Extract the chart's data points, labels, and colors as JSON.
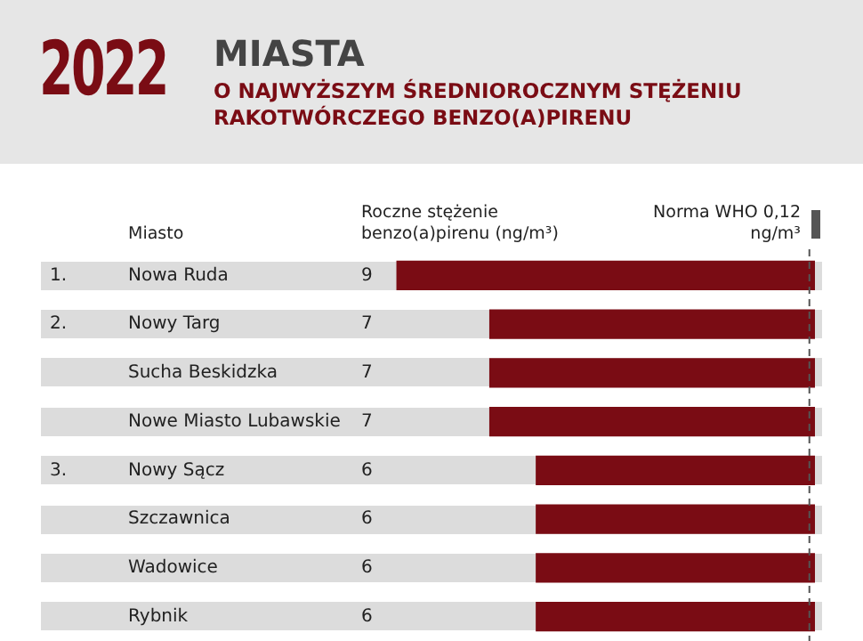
{
  "chart_data": {
    "type": "bar",
    "orientation": "horizontal",
    "title": "2022 MIASTA",
    "subtitle": "O NAJWYŻSZYM ŚREDNIOROCZNYM STĘŻENIU RAKOTWÓRCZEGO BENZO(A)PIRENU",
    "ylabel": "Miasto",
    "xlabel": "Roczne stężenie benzo(a)pirenu (ng/m³)",
    "categories": [
      "Nowa Ruda",
      "Nowy Targ",
      "Sucha Beskidzka",
      "Nowe Miasto Lubawskie",
      "Nowy Sącz",
      "Szczawnica",
      "Wadowice",
      "Rybnik"
    ],
    "values": [
      9,
      7,
      7,
      7,
      6,
      6,
      6,
      6
    ],
    "color": "#7a0c14",
    "data_labels": true,
    "tick_labels": false,
    "legend": "top right",
    "ref_lines": [
      {
        "axis": "x",
        "value": 0.12,
        "label": "Norma WHO 0,12 ng/m³",
        "color": "#555555",
        "line_style": "dashed"
      }
    ],
    "annotations": [
      "1.",
      "2.",
      "3."
    ]
  }
}
